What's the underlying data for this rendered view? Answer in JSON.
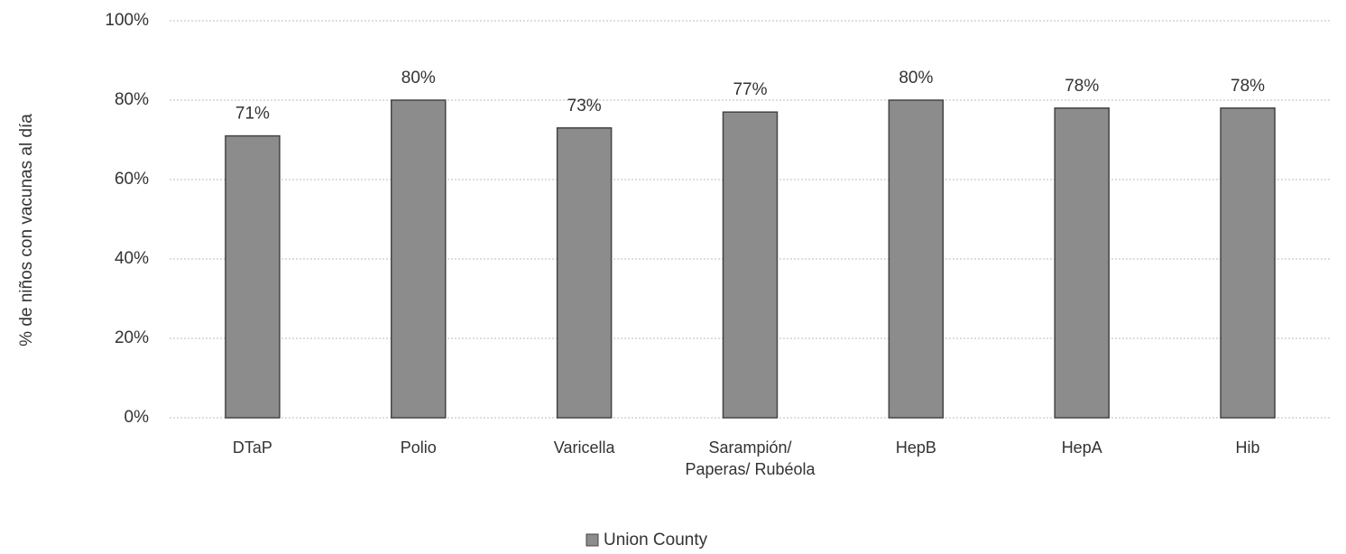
{
  "chart_data": {
    "type": "bar",
    "y_label": "% de niños con vacunas al día",
    "categories": [
      "DTaP",
      "Polio",
      "Varicella",
      "Sarampión/ Paperas/ Rubéola",
      "HepB",
      "HepA",
      "Hib"
    ],
    "series": [
      {
        "name": "Union County",
        "color": "#8c8c8c",
        "values": [
          71,
          80,
          73,
          77,
          80,
          78,
          78
        ],
        "value_labels": [
          "71%",
          "80%",
          "73%",
          "77%",
          "80%",
          "78%",
          "78%"
        ]
      }
    ],
    "ylim": [
      0,
      100
    ],
    "yticks": [
      {
        "value": 0,
        "label": "0%"
      },
      {
        "value": 20,
        "label": "20%"
      },
      {
        "value": 40,
        "label": "40%"
      },
      {
        "value": 60,
        "label": "60%"
      },
      {
        "value": 80,
        "label": "80%"
      },
      {
        "value": 100,
        "label": "100%"
      }
    ],
    "grid": true,
    "legend": "bottom"
  }
}
